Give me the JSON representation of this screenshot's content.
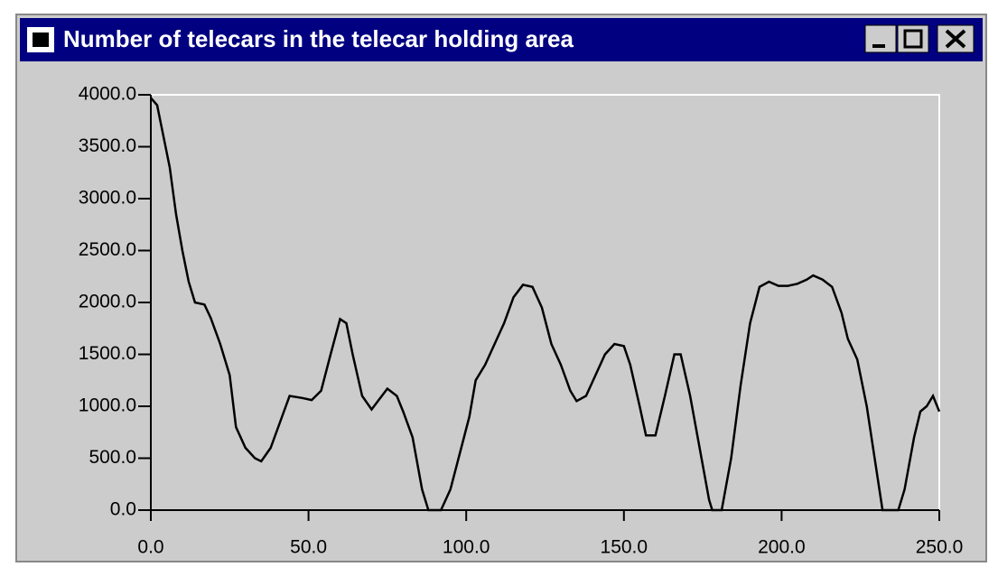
{
  "chart_data": {
    "type": "line",
    "title": "Number of telecars in the telecar holding area",
    "x": [
      0,
      2,
      4,
      6,
      8,
      10,
      12,
      14,
      17,
      19,
      22,
      25,
      27,
      30,
      33,
      35,
      38,
      41,
      44,
      48,
      51,
      54,
      57,
      60,
      62,
      64,
      67,
      70,
      72,
      75,
      78,
      80,
      83,
      86,
      88,
      92,
      95,
      98,
      101,
      103,
      106,
      109,
      112,
      115,
      118,
      121,
      124,
      127,
      130,
      133,
      135,
      138,
      141,
      144,
      147,
      150,
      152,
      155,
      157,
      160,
      163,
      166,
      168,
      171,
      174,
      177,
      178,
      181,
      184,
      187,
      190,
      193,
      196,
      199,
      202,
      205,
      208,
      210,
      213,
      216,
      219,
      221,
      224,
      227,
      230,
      232,
      237,
      239,
      242,
      244,
      246,
      248,
      250
    ],
    "series": [
      {
        "color": "#000000",
        "values": [
          3970,
          3900,
          3600,
          3300,
          2850,
          2500,
          2200,
          2000,
          1980,
          1850,
          1600,
          1300,
          800,
          600,
          500,
          470,
          600,
          850,
          1100,
          1080,
          1060,
          1150,
          1500,
          1840,
          1800,
          1500,
          1100,
          970,
          1050,
          1170,
          1100,
          950,
          700,
          200,
          0,
          0,
          200,
          550,
          900,
          1250,
          1400,
          1600,
          1800,
          2050,
          2170,
          2150,
          1950,
          1600,
          1400,
          1150,
          1050,
          1100,
          1300,
          1500,
          1600,
          1580,
          1400,
          1000,
          720,
          720,
          1100,
          1500,
          1500,
          1100,
          600,
          100,
          0,
          0,
          500,
          1200,
          1800,
          2150,
          2200,
          2160,
          2160,
          2180,
          2220,
          2260,
          2220,
          2150,
          1900,
          1650,
          1450,
          1000,
          400,
          0,
          0,
          200,
          700,
          950,
          1000,
          1100,
          950
        ]
      }
    ],
    "xlim": [
      0,
      250
    ],
    "ylim": [
      0,
      4000
    ],
    "xticks": [
      {
        "value": 0,
        "label": "0.0"
      },
      {
        "value": 50,
        "label": "50.0"
      },
      {
        "value": 100,
        "label": "100.0"
      },
      {
        "value": 150,
        "label": "150.0"
      },
      {
        "value": 200,
        "label": "200.0"
      },
      {
        "value": 250,
        "label": "250.0"
      }
    ],
    "yticks": [
      {
        "value": 0,
        "label": "0.0"
      },
      {
        "value": 500,
        "label": "500.0"
      },
      {
        "value": 1000,
        "label": "1000.0"
      },
      {
        "value": 1500,
        "label": "1500.0"
      },
      {
        "value": 2000,
        "label": "2000.0"
      },
      {
        "value": 2500,
        "label": "2500.0"
      },
      {
        "value": 3000,
        "label": "3000.0"
      },
      {
        "value": 3500,
        "label": "3500.0"
      },
      {
        "value": 4000,
        "label": "4000.0"
      }
    ]
  }
}
